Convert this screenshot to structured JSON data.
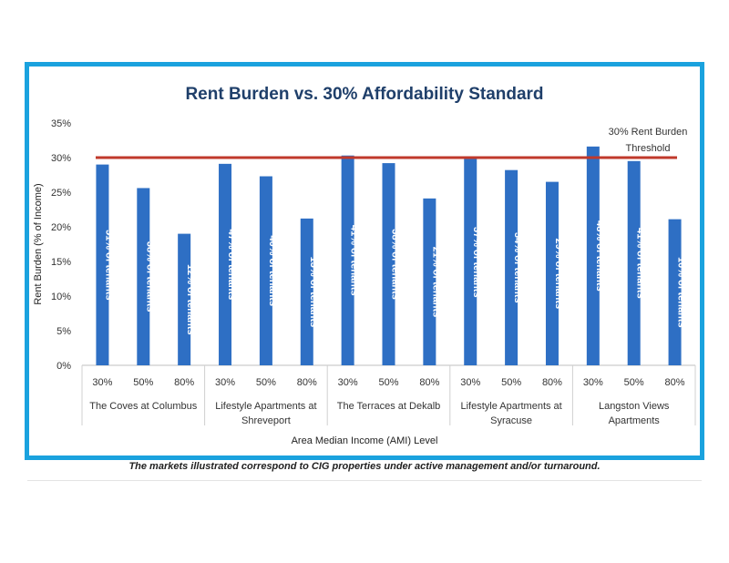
{
  "chart_data": {
    "type": "bar",
    "title": "Rent Burden vs. 30% Affordability Standard",
    "ylabel": "Rent Burden (% of Income)",
    "xlabel": "Area Median Income (AMI) Level",
    "ylim": [
      0,
      35
    ],
    "yticks": [
      "0%",
      "5%",
      "10%",
      "15%",
      "20%",
      "25%",
      "30%",
      "35%"
    ],
    "bar_color": "#2e6fc4",
    "threshold": {
      "value": 30,
      "label_line1": "30% Rent Burden",
      "label_line2": "Threshold",
      "color": "#c0392b"
    },
    "groups": [
      {
        "name": "The Coves at Columbus",
        "bars": [
          {
            "category": "30%",
            "value": 29.0,
            "label": "51% of tenants"
          },
          {
            "category": "50%",
            "value": 25.6,
            "label": "38% of tenants"
          },
          {
            "category": "80%",
            "value": 19.0,
            "label": "12% of tenants"
          }
        ]
      },
      {
        "name": "Lifestyle Apartments at Shreveport",
        "bars": [
          {
            "category": "30%",
            "value": 29.1,
            "label": "47% of tenants"
          },
          {
            "category": "50%",
            "value": 27.3,
            "label": "40% of tenants"
          },
          {
            "category": "80%",
            "value": 21.2,
            "label": "13% of tenants"
          }
        ]
      },
      {
        "name": "The Terraces at Dekalb",
        "bars": [
          {
            "category": "30%",
            "value": 30.3,
            "label": "41% of tenants"
          },
          {
            "category": "50%",
            "value": 29.2,
            "label": "38% of tenants"
          },
          {
            "category": "80%",
            "value": 24.1,
            "label": "21% of tenants"
          }
        ]
      },
      {
        "name": "Lifestyle Apartments at Syracuse",
        "bars": [
          {
            "category": "30%",
            "value": 29.8,
            "label": "37% of tenants"
          },
          {
            "category": "50%",
            "value": 28.2,
            "label": "34% of tenants"
          },
          {
            "category": "80%",
            "value": 26.5,
            "label": "29% of tenants"
          }
        ]
      },
      {
        "name": "Langston Views Apartments",
        "bars": [
          {
            "category": "30%",
            "value": 31.6,
            "label": "48% of tenants"
          },
          {
            "category": "50%",
            "value": 29.5,
            "label": "41% of tenants"
          },
          {
            "category": "80%",
            "value": 21.1,
            "label": "10% of tenants"
          }
        ]
      }
    ]
  },
  "footnote": "The markets illustrated correspond to CIG properties under active management and/or turnaround."
}
